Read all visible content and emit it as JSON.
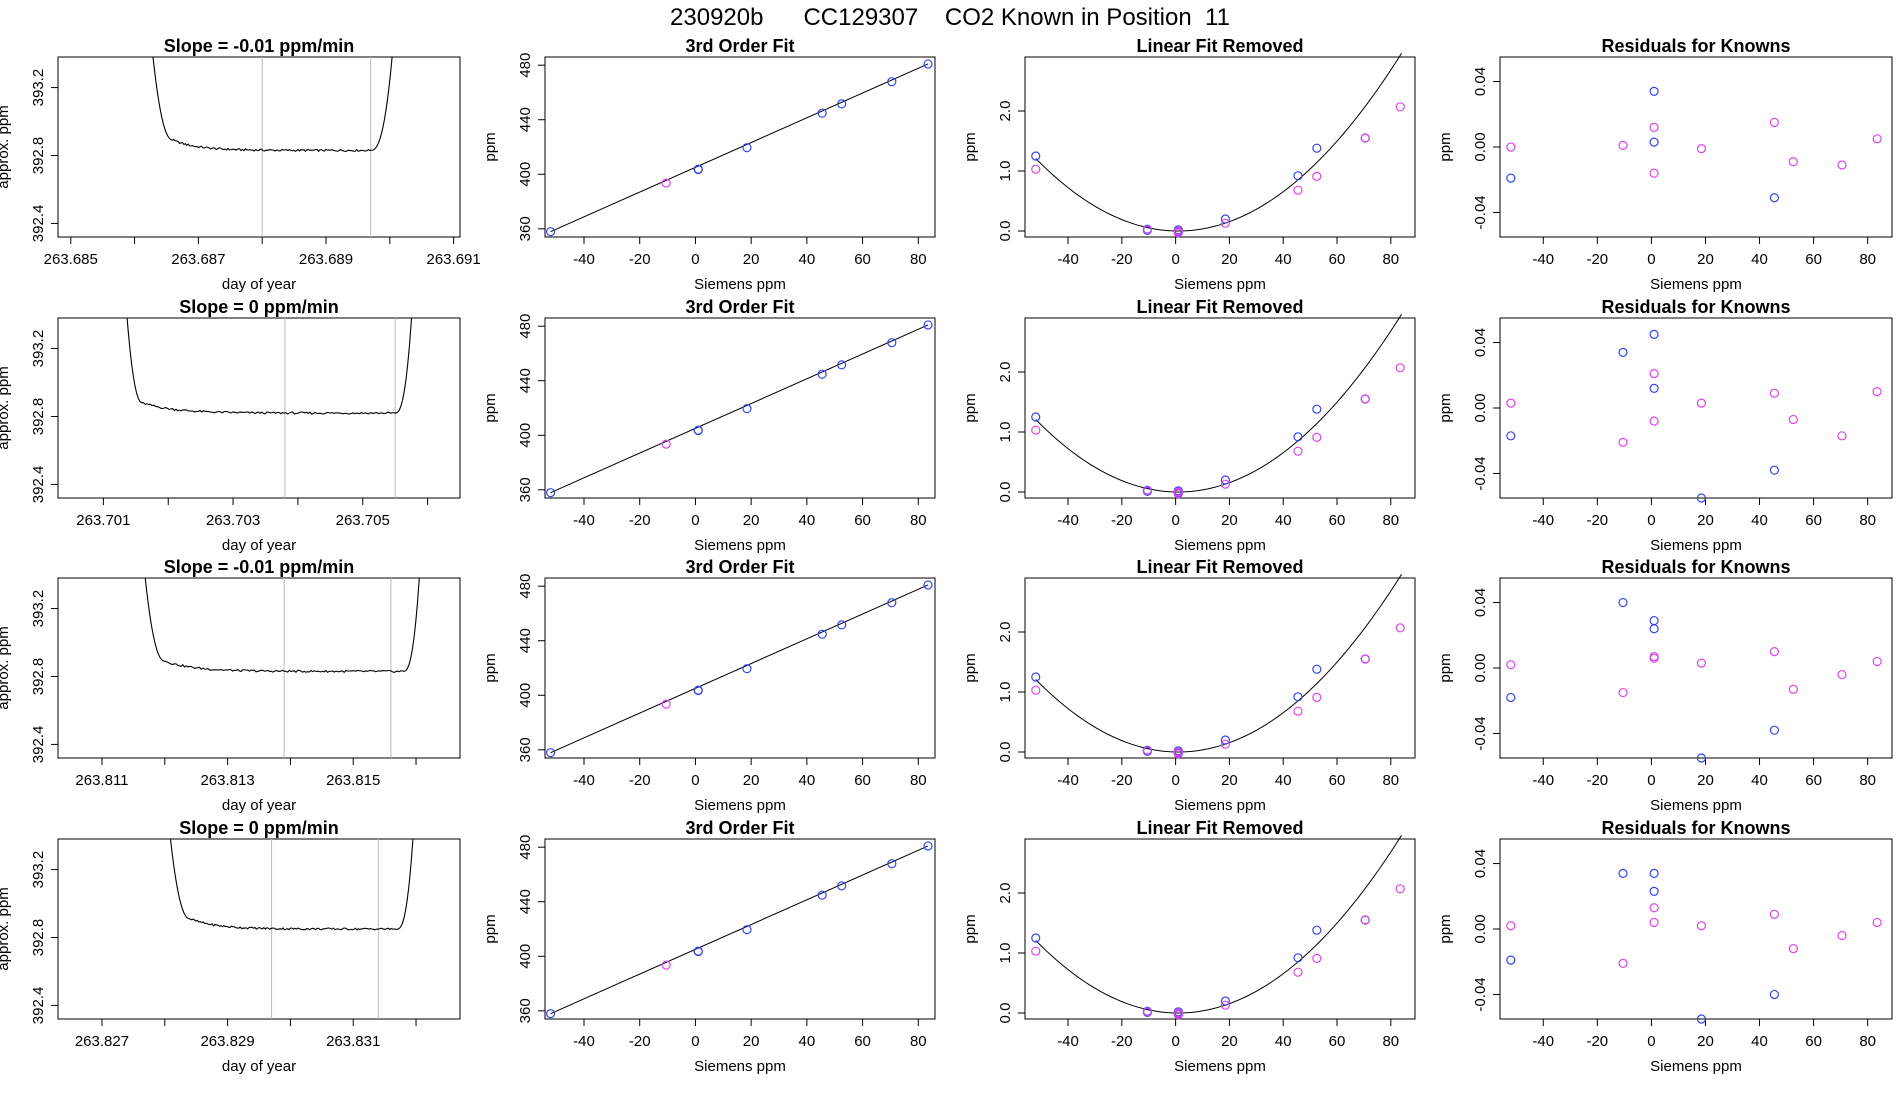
{
  "page": {
    "title": "230920b      CC129307    CO2 Known in Position  11"
  },
  "colors": {
    "line": "#000000",
    "blue_point": "#3344ee",
    "magenta_point": "#dd44ee",
    "vline": "#bbbbbb",
    "frame": "#000000"
  },
  "rows": [
    {
      "ts": {
        "title": "Slope =  -0.01  ppm/min",
        "xlabel": "day of year",
        "ylabel": "approx. ppm",
        "xlim": [
          263.6848,
          263.6911
        ],
        "ylim": [
          392.32,
          393.38
        ],
        "xticks": [
          263.685,
          263.686,
          263.687,
          263.688,
          263.689,
          263.69,
          263.691
        ],
        "xticklabels": [
          "263.685",
          "",
          "263.687",
          "",
          "263.689",
          "",
          "263.691"
        ],
        "yticks": [
          392.4,
          392.8,
          393.2
        ],
        "yticklabels": [
          "392.4",
          "392.8",
          "393.2"
        ],
        "t_start": 263.6862,
        "t_drop": 263.6866,
        "t_rise": 263.6897,
        "t_end": 263.6901,
        "plateau": 392.83,
        "vlines": [
          263.688,
          263.6897
        ]
      },
      "fit": {
        "title": "3rd Order Fit",
        "xlabel": "Siemens ppm",
        "ylabel": "ppm",
        "xlim": [
          -54,
          86
        ],
        "ylim": [
          354,
          486
        ],
        "xticks": [
          -40,
          -20,
          0,
          20,
          40,
          60,
          80
        ],
        "yticks": [
          360,
          400,
          440,
          480
        ]
      },
      "lin": {
        "title": "Linear Fit Removed",
        "xlabel": "Siemens ppm",
        "ylabel": "ppm",
        "xlim": [
          -56,
          89
        ],
        "ylim": [
          -0.1,
          2.9
        ],
        "xticks": [
          -40,
          -20,
          0,
          20,
          40,
          60,
          80
        ],
        "yticks": [
          0.0,
          1.0,
          2.0
        ],
        "yticklabels": [
          "0.0",
          "1.0",
          "2.0"
        ]
      },
      "res": {
        "title": "Residuals for Knowns",
        "xlabel": "Siemens ppm",
        "ylabel": "ppm",
        "xlim": [
          -56,
          89
        ],
        "ylim": [
          -0.055,
          0.055
        ],
        "xticks": [
          -40,
          -20,
          0,
          20,
          40,
          60,
          80
        ],
        "yticks": [
          -0.04,
          0.0,
          0.04
        ],
        "yticklabels": [
          "-0.04",
          "0.00",
          "0.04"
        ],
        "blue": [
          [
            -52,
            -0.019
          ],
          [
            1,
            0.034
          ],
          [
            1,
            0.003
          ],
          [
            45.5,
            -0.031
          ]
        ],
        "magenta": [
          [
            -52,
            0.0
          ],
          [
            -10.5,
            0.001
          ],
          [
            1,
            0.012
          ],
          [
            1,
            -0.016
          ],
          [
            18.5,
            -0.001
          ],
          [
            45.5,
            0.015
          ],
          [
            52.5,
            -0.009
          ],
          [
            70.5,
            -0.011
          ],
          [
            83.5,
            0.005
          ]
        ]
      }
    },
    {
      "ts": {
        "title": "Slope =  0  ppm/min",
        "xlabel": "day of year",
        "ylabel": "approx. ppm",
        "xlim": [
          263.7003,
          263.7065
        ],
        "ylim": [
          392.32,
          393.38
        ],
        "xticks": [
          263.701,
          263.702,
          263.703,
          263.704,
          263.705,
          263.706
        ],
        "xticklabels": [
          "263.701",
          "",
          "263.703",
          "",
          "263.705",
          ""
        ],
        "yticks": [
          392.4,
          392.8,
          393.2
        ],
        "yticklabels": [
          "392.4",
          "392.8",
          "393.2"
        ],
        "t_start": 263.7013,
        "t_drop": 263.7016,
        "t_rise": 263.7055,
        "t_end": 263.7058,
        "plateau": 392.82,
        "vlines": [
          263.7038,
          263.7055
        ]
      },
      "fit": {
        "title": "3rd Order Fit",
        "xlabel": "Siemens ppm",
        "ylabel": "ppm",
        "xlim": [
          -54,
          86
        ],
        "ylim": [
          354,
          486
        ],
        "xticks": [
          -40,
          -20,
          0,
          20,
          40,
          60,
          80
        ],
        "yticks": [
          360,
          400,
          440,
          480
        ]
      },
      "lin": {
        "title": "Linear Fit Removed",
        "xlabel": "Siemens ppm",
        "ylabel": "ppm",
        "xlim": [
          -56,
          89
        ],
        "ylim": [
          -0.1,
          2.9
        ],
        "xticks": [
          -40,
          -20,
          0,
          20,
          40,
          60,
          80
        ],
        "yticks": [
          0.0,
          1.0,
          2.0
        ],
        "yticklabels": [
          "0.0",
          "1.0",
          "2.0"
        ]
      },
      "res": {
        "title": "Residuals for Knowns",
        "xlabel": "Siemens ppm",
        "ylabel": "ppm",
        "xlim": [
          -56,
          89
        ],
        "ylim": [
          -0.055,
          0.055
        ],
        "xticks": [
          -40,
          -20,
          0,
          20,
          40,
          60,
          80
        ],
        "yticks": [
          -0.04,
          0.0,
          0.04
        ],
        "yticklabels": [
          "-0.04",
          "0.00",
          "0.04"
        ],
        "blue": [
          [
            -52,
            -0.017
          ],
          [
            -10.5,
            0.034
          ],
          [
            1,
            0.045
          ],
          [
            1,
            0.012
          ],
          [
            18.5,
            -0.055
          ],
          [
            45.5,
            -0.038
          ]
        ],
        "magenta": [
          [
            -52,
            0.003
          ],
          [
            -10.5,
            -0.021
          ],
          [
            1,
            0.021
          ],
          [
            1,
            -0.008
          ],
          [
            18.5,
            0.003
          ],
          [
            45.5,
            0.009
          ],
          [
            52.5,
            -0.007
          ],
          [
            70.5,
            -0.017
          ],
          [
            83.5,
            0.01
          ]
        ]
      }
    },
    {
      "ts": {
        "title": "Slope =  -0.01  ppm/min",
        "xlabel": "day of year",
        "ylabel": "approx. ppm",
        "xlim": [
          263.8103,
          263.8167
        ],
        "ylim": [
          392.32,
          393.38
        ],
        "xticks": [
          263.811,
          263.812,
          263.813,
          263.814,
          263.815,
          263.816
        ],
        "xticklabels": [
          "263.811",
          "",
          "263.813",
          "",
          "263.815",
          ""
        ],
        "yticks": [
          392.4,
          392.8,
          393.2
        ],
        "yticklabels": [
          "392.4",
          "392.8",
          "393.2"
        ],
        "t_start": 263.8116,
        "t_drop": 263.812,
        "t_rise": 263.8158,
        "t_end": 263.8161,
        "plateau": 392.83,
        "vlines": [
          263.8139,
          263.8156
        ]
      },
      "fit": {
        "title": "3rd Order Fit",
        "xlabel": "Siemens ppm",
        "ylabel": "ppm",
        "xlim": [
          -54,
          86
        ],
        "ylim": [
          354,
          486
        ],
        "xticks": [
          -40,
          -20,
          0,
          20,
          40,
          60,
          80
        ],
        "yticks": [
          360,
          400,
          440,
          480
        ]
      },
      "lin": {
        "title": "Linear Fit Removed",
        "xlabel": "Siemens ppm",
        "ylabel": "ppm",
        "xlim": [
          -56,
          89
        ],
        "ylim": [
          -0.1,
          2.9
        ],
        "xticks": [
          -40,
          -20,
          0,
          20,
          40,
          60,
          80
        ],
        "yticks": [
          0.0,
          1.0,
          2.0
        ],
        "yticklabels": [
          "0.0",
          "1.0",
          "2.0"
        ]
      },
      "res": {
        "title": "Residuals for Knowns",
        "xlabel": "Siemens ppm",
        "ylabel": "ppm",
        "xlim": [
          -56,
          89
        ],
        "ylim": [
          -0.055,
          0.055
        ],
        "xticks": [
          -40,
          -20,
          0,
          20,
          40,
          60,
          80
        ],
        "yticks": [
          -0.04,
          0.0,
          0.04
        ],
        "yticklabels": [
          "-0.04",
          "0.00",
          "0.04"
        ],
        "blue": [
          [
            -52,
            -0.018
          ],
          [
            -10.5,
            0.04
          ],
          [
            1,
            0.029
          ],
          [
            1,
            0.024
          ],
          [
            18.5,
            -0.055
          ],
          [
            45.5,
            -0.038
          ]
        ],
        "magenta": [
          [
            -52,
            0.002
          ],
          [
            -10.5,
            -0.015
          ],
          [
            1,
            0.007
          ],
          [
            1,
            0.006
          ],
          [
            18.5,
            0.003
          ],
          [
            45.5,
            0.01
          ],
          [
            52.5,
            -0.013
          ],
          [
            70.5,
            -0.004
          ],
          [
            83.5,
            0.004
          ]
        ]
      }
    },
    {
      "ts": {
        "title": "Slope =  0  ppm/min",
        "xlabel": "day of year",
        "ylabel": "approx. ppm",
        "xlim": [
          263.8263,
          263.8327
        ],
        "ylim": [
          392.32,
          393.38
        ],
        "xticks": [
          263.827,
          263.828,
          263.829,
          263.83,
          263.831,
          263.832
        ],
        "xticklabels": [
          "263.827",
          "",
          "263.829",
          "",
          "263.831",
          ""
        ],
        "yticks": [
          392.4,
          392.8,
          393.2
        ],
        "yticklabels": [
          "392.4",
          "392.8",
          "393.2"
        ],
        "t_start": 263.828,
        "t_drop": 263.8284,
        "t_rise": 263.8317,
        "t_end": 263.832,
        "plateau": 392.85,
        "vlines": [
          263.8297,
          263.8314
        ]
      },
      "fit": {
        "title": "3rd Order Fit",
        "xlabel": "Siemens ppm",
        "ylabel": "ppm",
        "xlim": [
          -54,
          86
        ],
        "ylim": [
          354,
          486
        ],
        "xticks": [
          -40,
          -20,
          0,
          20,
          40,
          60,
          80
        ],
        "yticks": [
          360,
          400,
          440,
          480
        ]
      },
      "lin": {
        "title": "Linear Fit Removed",
        "xlabel": "Siemens ppm",
        "ylabel": "ppm",
        "xlim": [
          -56,
          89
        ],
        "ylim": [
          -0.1,
          2.9
        ],
        "xticks": [
          -40,
          -20,
          0,
          20,
          40,
          60,
          80
        ],
        "yticks": [
          0.0,
          1.0,
          2.0
        ],
        "yticklabels": [
          "0.0",
          "1.0",
          "2.0"
        ]
      },
      "res": {
        "title": "Residuals for Knowns",
        "xlabel": "Siemens ppm",
        "ylabel": "ppm",
        "xlim": [
          -56,
          89
        ],
        "ylim": [
          -0.055,
          0.055
        ],
        "xticks": [
          -40,
          -20,
          0,
          20,
          40,
          60,
          80
        ],
        "yticks": [
          -0.04,
          0.0,
          0.04
        ],
        "yticklabels": [
          "-0.04",
          "0.00",
          "0.04"
        ],
        "blue": [
          [
            -52,
            -0.019
          ],
          [
            -10.5,
            0.034
          ],
          [
            1,
            0.034
          ],
          [
            1,
            0.023
          ],
          [
            18.5,
            -0.055
          ],
          [
            45.5,
            -0.04
          ]
        ],
        "magenta": [
          [
            -52,
            0.002
          ],
          [
            -10.5,
            -0.021
          ],
          [
            1,
            0.013
          ],
          [
            1,
            0.004
          ],
          [
            18.5,
            0.002
          ],
          [
            45.5,
            0.009
          ],
          [
            52.5,
            -0.012
          ],
          [
            70.5,
            -0.004
          ],
          [
            83.5,
            0.004
          ]
        ]
      }
    }
  ],
  "chart_data": {
    "type": "scatter",
    "known_siemens_ppm": [
      -52,
      -10.5,
      1,
      1,
      18.5,
      45.5,
      52.5,
      70.5,
      83.5
    ],
    "known_ppm": [
      357.9,
      393.5,
      403.5,
      403.7,
      419.5,
      444.8,
      451.6,
      467.9,
      480.9
    ],
    "linear_fit_removed": {
      "blue": [
        [
          -52,
          1.25
        ],
        [
          -10.5,
          0.03
        ],
        [
          -10.5,
          0.01
        ],
        [
          1,
          0.02
        ],
        [
          1,
          -0.02
        ],
        [
          18.5,
          0.2
        ],
        [
          45.5,
          0.92
        ],
        [
          52.5,
          1.38
        ],
        [
          70.5,
          1.55
        ]
      ],
      "magenta": [
        [
          -52,
          1.03
        ],
        [
          -10.5,
          0.02
        ],
        [
          1,
          0.0
        ],
        [
          1,
          -0.03
        ],
        [
          18.5,
          0.13
        ],
        [
          45.5,
          0.68
        ],
        [
          52.5,
          0.91
        ],
        [
          70.5,
          1.55
        ],
        [
          83.5,
          2.07
        ]
      ],
      "curve_coeffs": [
        0.0,
        0.0,
        0.00043
      ]
    }
  }
}
